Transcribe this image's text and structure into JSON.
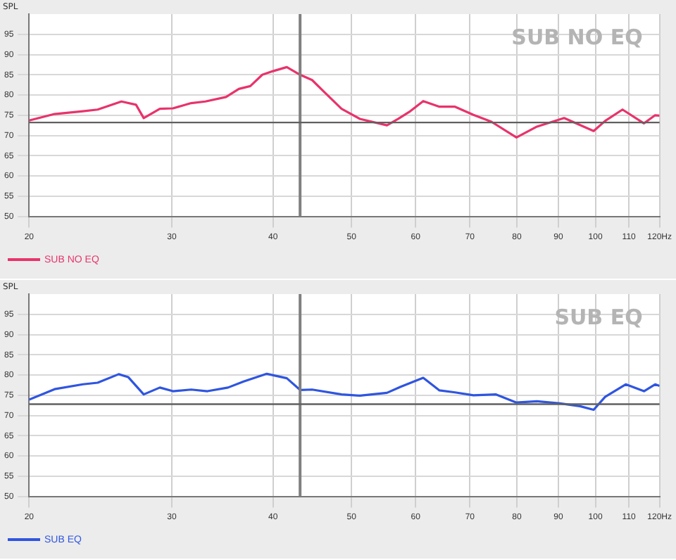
{
  "chart_data": [
    {
      "type": "line",
      "title": "SUB NO EQ",
      "ylabel": "SPL",
      "log": "x",
      "grid": true,
      "legend": "bottom",
      "marker": "none",
      "line_style": "solid",
      "xlim": [
        20,
        120
      ],
      "xticks": [
        20,
        30,
        40,
        50,
        60,
        70,
        80,
        90,
        100,
        110,
        {
          "value": 120,
          "label": "120Hz"
        }
      ],
      "ylim": [
        50,
        100
      ],
      "yticks": [
        50,
        55,
        60,
        65,
        70,
        75,
        80,
        85,
        90,
        95
      ],
      "ref_lines": [
        {
          "axis": "x",
          "value": 43.2,
          "color": "#808080"
        },
        {
          "axis": "y",
          "value": 73.2,
          "color": "#606060"
        }
      ],
      "series": [
        {
          "name": "SUB NO EQ",
          "color": "#e8336b",
          "x": [
            20,
            21.5,
            23.3,
            24.3,
            26.0,
            27.1,
            27.7,
            29.0,
            30.1,
            31.7,
            33.0,
            35.0,
            36.3,
            37.5,
            38.8,
            40.0,
            41.6,
            43.2,
            44.7,
            46.4,
            48.6,
            51.2,
            55.3,
            57.1,
            58.9,
            61.3,
            64.2,
            67.1,
            70.7,
            74.4,
            79.9,
            84.7,
            91.5,
            99.5,
            102.8,
            108.0,
            114.8,
            118.5,
            120
          ],
          "values": [
            73.7,
            75.3,
            76.0,
            76.4,
            78.4,
            77.6,
            74.3,
            76.6,
            76.7,
            78.0,
            78.4,
            79.5,
            81.5,
            82.2,
            85.0,
            85.9,
            86.9,
            85.0,
            83.7,
            80.5,
            76.6,
            74.1,
            72.5,
            74.1,
            75.8,
            78.5,
            77.1,
            77.1,
            75.1,
            73.4,
            69.5,
            72.2,
            74.3,
            71.1,
            73.6,
            76.4,
            73.0,
            75.0,
            74.9
          ]
        }
      ]
    },
    {
      "type": "line",
      "title": "SUB EQ",
      "ylabel": "SPL",
      "log": "x",
      "grid": true,
      "legend": "bottom",
      "marker": "none",
      "line_style": "solid",
      "xlim": [
        20,
        120
      ],
      "xticks": [
        20,
        30,
        40,
        50,
        60,
        70,
        80,
        90,
        100,
        110,
        {
          "value": 120,
          "label": "120Hz"
        }
      ],
      "ylim": [
        50,
        100
      ],
      "yticks": [
        50,
        55,
        60,
        65,
        70,
        75,
        80,
        85,
        90,
        95
      ],
      "ref_lines": [
        {
          "axis": "x",
          "value": 43.2,
          "color": "#808080"
        },
        {
          "axis": "y",
          "value": 72.8,
          "color": "#606060"
        }
      ],
      "series": [
        {
          "name": "SUB EQ",
          "color": "#2f55e0",
          "x": [
            20,
            21.5,
            23.3,
            24.3,
            25.8,
            26.5,
            27.7,
            29.0,
            30.1,
            31.7,
            33.2,
            35.2,
            36.8,
            39.3,
            41.6,
            43.2,
            44.7,
            48.6,
            51.2,
            55.3,
            57.5,
            61.3,
            64.2,
            67.1,
            70.7,
            75.4,
            79.9,
            84.7,
            90.4,
            95.7,
            99.5,
            102.8,
            109.0,
            114.8,
            118.5,
            120
          ],
          "values": [
            73.9,
            76.5,
            77.7,
            78.1,
            80.2,
            79.5,
            75.2,
            76.9,
            76.0,
            76.4,
            76.0,
            76.9,
            78.4,
            80.3,
            79.2,
            76.3,
            76.4,
            75.2,
            74.9,
            75.6,
            77.1,
            79.3,
            76.2,
            75.7,
            75.0,
            75.2,
            73.2,
            73.5,
            73.0,
            72.3,
            71.4,
            74.6,
            77.7,
            76.0,
            77.7,
            77.3
          ]
        }
      ]
    }
  ]
}
